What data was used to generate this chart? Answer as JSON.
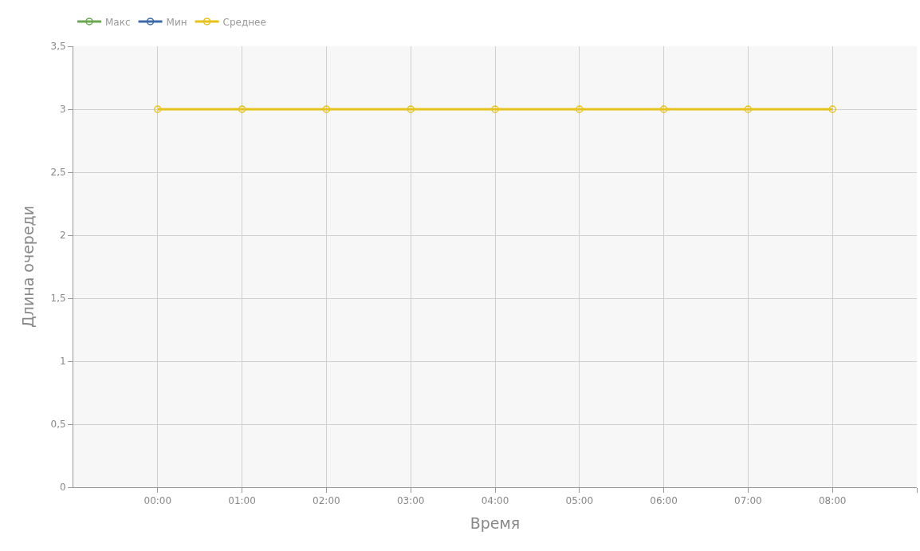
{
  "chart_data": {
    "type": "line",
    "xlabel": "Время",
    "ylabel": "Длина очереди",
    "x": [
      0,
      1,
      2,
      3,
      4,
      5,
      6,
      7,
      8
    ],
    "series": [
      {
        "name": "Макс",
        "color": "#6aa84f",
        "values": [
          null,
          null,
          null,
          null,
          null,
          null,
          null,
          null,
          null
        ]
      },
      {
        "name": "Мин",
        "color": "#3d6aa8",
        "values": [
          null,
          null,
          null,
          null,
          null,
          null,
          null,
          null,
          null
        ]
      },
      {
        "name": "Среднее",
        "color": "#e8c21c",
        "values": [
          3,
          3,
          3,
          3,
          3,
          3,
          3,
          3,
          3
        ]
      }
    ],
    "xlim": [
      -1,
      9
    ],
    "xticks": [
      {
        "value": 0,
        "label": "00:00"
      },
      {
        "value": 1,
        "label": "01:00"
      },
      {
        "value": 2,
        "label": "02:00"
      },
      {
        "value": 3,
        "label": "03:00"
      },
      {
        "value": 4,
        "label": "04:00"
      },
      {
        "value": 5,
        "label": "05:00"
      },
      {
        "value": 6,
        "label": "06:00"
      },
      {
        "value": 7,
        "label": "07:00"
      },
      {
        "value": 8,
        "label": "08:00"
      },
      {
        "value": 9,
        "label": null
      }
    ],
    "ylim": [
      0,
      3.5
    ],
    "yticks": [
      {
        "value": 0,
        "label": "0"
      },
      {
        "value": 0.5,
        "label": "0,5"
      },
      {
        "value": 1,
        "label": "1"
      },
      {
        "value": 1.5,
        "label": "1,5"
      },
      {
        "value": 2,
        "label": "2"
      },
      {
        "value": 2.5,
        "label": "2,5"
      },
      {
        "value": 3,
        "label": "3"
      },
      {
        "value": 3.5,
        "label": "3,5"
      }
    ],
    "grid": true,
    "legend": "top left",
    "marker": "circle",
    "line_style": "solid"
  }
}
